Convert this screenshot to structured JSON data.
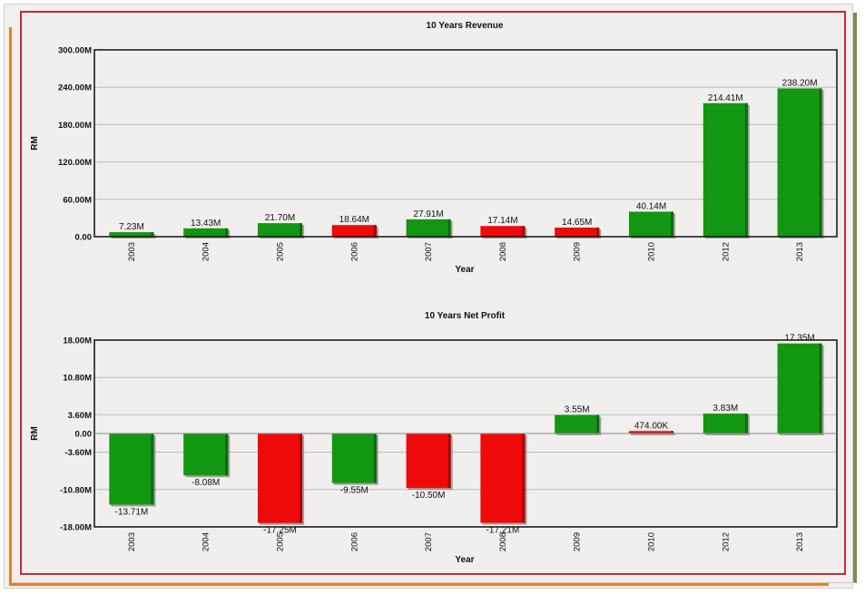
{
  "colors": {
    "positive": "#129712",
    "negative": "#ee0a0a",
    "grid": "#bdbdbd",
    "border": "#c8283a"
  },
  "chart_data": [
    {
      "type": "bar",
      "title": "10 Years Revenue",
      "xlabel": "Year",
      "ylabel": "RM",
      "ylim": [
        0,
        300
      ],
      "yticks": [
        0,
        60,
        120,
        180,
        240,
        300
      ],
      "ytick_labels": [
        "0.00",
        "60.00M",
        "120.00M",
        "180.00M",
        "240.00M",
        "300.00M"
      ],
      "grid": true,
      "categories": [
        "2003",
        "2004",
        "2005",
        "2006",
        "2007",
        "2008",
        "2009",
        "2010",
        "2012",
        "2013"
      ],
      "values": [
        7.23,
        13.43,
        21.7,
        18.64,
        27.91,
        17.14,
        14.65,
        40.14,
        214.41,
        238.2
      ],
      "data_labels": [
        "7.23M",
        "13.43M",
        "21.70M",
        "18.64M",
        "27.91M",
        "17.14M",
        "14.65M",
        "40.14M",
        "214.41M",
        "238.20M"
      ],
      "bar_colors": [
        "#129712",
        "#129712",
        "#129712",
        "#ee0a0a",
        "#129712",
        "#ee0a0a",
        "#ee0a0a",
        "#129712",
        "#129712",
        "#129712"
      ]
    },
    {
      "type": "bar",
      "title": "10 Years Net Profit",
      "xlabel": "Year",
      "ylabel": "RM",
      "ylim": [
        -18,
        18
      ],
      "yticks": [
        -18,
        -10.8,
        -3.6,
        0,
        3.6,
        10.8,
        18
      ],
      "ytick_labels": [
        "-18.00M",
        "-10.80M",
        "-3.60M",
        "0.00",
        "3.60M",
        "10.80M",
        "18.00M"
      ],
      "grid": true,
      "categories": [
        "2003",
        "2004",
        "2005",
        "2006",
        "2007",
        "2008",
        "2009",
        "2010",
        "2012",
        "2013"
      ],
      "values": [
        -13.71,
        -8.08,
        -17.25,
        -9.55,
        -10.5,
        -17.21,
        3.55,
        0.474,
        3.83,
        17.35
      ],
      "data_labels": [
        "-13.71M",
        "-8.08M",
        "-17.25M",
        "-9.55M",
        "-10.50M",
        "-17.21M",
        "3.55M",
        "474.00K",
        "3.83M",
        "17.35M"
      ],
      "bar_colors": [
        "#129712",
        "#129712",
        "#ee0a0a",
        "#129712",
        "#ee0a0a",
        "#ee0a0a",
        "#129712",
        "#ee0a0a",
        "#129712",
        "#129712"
      ]
    }
  ]
}
